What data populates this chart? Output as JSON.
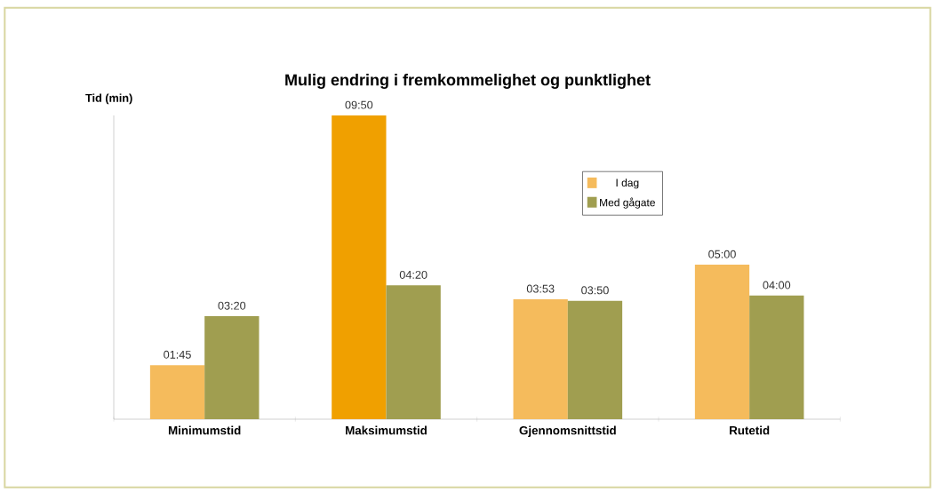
{
  "chart_data": {
    "type": "bar",
    "title": "Mulig endring i fremkommelighet og punktlighet",
    "ylabel": "Tid (min)",
    "categories": [
      "Minimumstid",
      "Maksimumstid",
      "Gjennomsnittstid",
      "Rutetid"
    ],
    "series": [
      {
        "name": "I dag",
        "color": "#f5bb5c",
        "colors": [
          "#f5bb5c",
          "#f0a000",
          "#f5bb5c",
          "#f5bb5c"
        ],
        "values": [
          1.75,
          9.833,
          3.883,
          5.0
        ],
        "value_labels": [
          "01:45",
          "09:50",
          "03:53",
          "05:00"
        ]
      },
      {
        "name": "Med gågate",
        "color": "#a09e50",
        "values": [
          3.333,
          4.333,
          3.833,
          4.0
        ],
        "value_labels": [
          "03:20",
          "04:20",
          "03:50",
          "04:00"
        ]
      }
    ],
    "legend": "top right"
  }
}
